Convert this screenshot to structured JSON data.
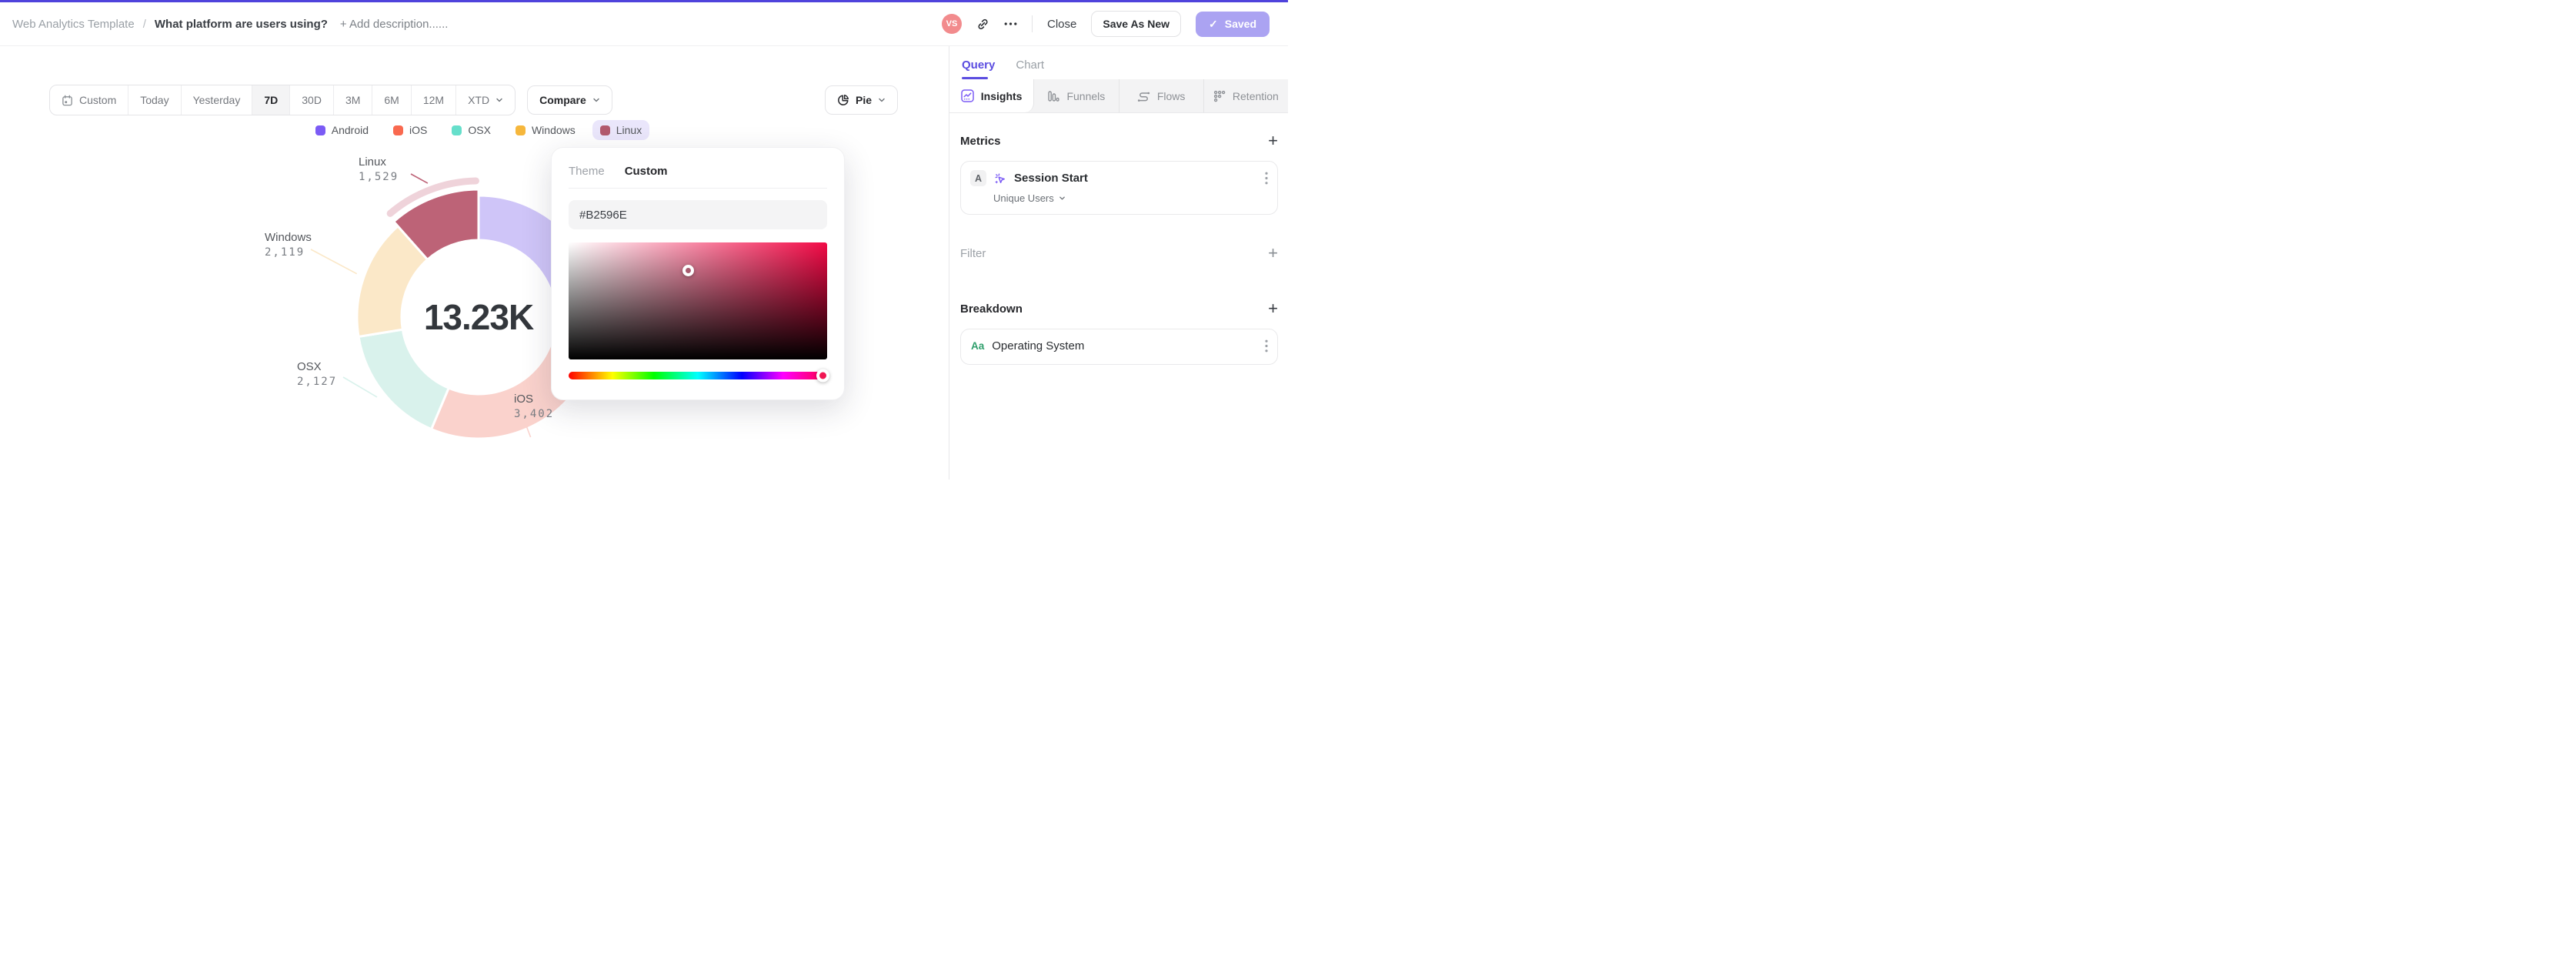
{
  "header": {
    "breadcrumb": "Web Analytics Template",
    "separator": "/",
    "title": "What platform are users using?",
    "add_description": "+ Add description......",
    "avatar_initials": "VS",
    "close_label": "Close",
    "save_as_new_label": "Save As New",
    "saved_label": "Saved",
    "saved_check": "✓",
    "accent_color": "#4F43DC",
    "saved_button_color": "#ABA3F2",
    "avatar_color": "#F28B8D"
  },
  "toolbar": {
    "ranges": [
      "Custom",
      "Today",
      "Yesterday",
      "7D",
      "30D",
      "3M",
      "6M",
      "12M",
      "XTD"
    ],
    "active_range": "7D",
    "dropdown_range": "XTD",
    "compare_label": "Compare",
    "chart_type_label": "Pie"
  },
  "chart_data": {
    "type": "pie",
    "donut": true,
    "title": "",
    "total_display": "13.23K",
    "total_value": 13230,
    "categories": [
      "Android",
      "iOS",
      "OSX",
      "Windows",
      "Linux"
    ],
    "values": [
      4053,
      3402,
      2127,
      2119,
      1529
    ],
    "series": [
      {
        "name": "Android",
        "value": 4053,
        "display_value": "",
        "label_visible": false,
        "legend_color": "#7B5BF5",
        "slice_color": "#CFC5F8"
      },
      {
        "name": "iOS",
        "value": 3402,
        "display_value": "3,402",
        "label_visible": true,
        "legend_color": "#F9694F",
        "slice_color": "#FAD2CC"
      },
      {
        "name": "OSX",
        "value": 2127,
        "display_value": "2,127",
        "label_visible": true,
        "legend_color": "#66DFCB",
        "slice_color": "#D9F2EC"
      },
      {
        "name": "Windows",
        "value": 2119,
        "display_value": "2,119",
        "label_visible": true,
        "legend_color": "#F6B73C",
        "slice_color": "#FBE8C8"
      },
      {
        "name": "Linux",
        "value": 1529,
        "display_value": "1,529",
        "label_visible": true,
        "legend_color": "#B2596E",
        "slice_color": "#BD6377"
      }
    ],
    "highlighted": "Linux",
    "highlight_ring_color": "#EFD3DA",
    "legend_position": "top",
    "legend_highlight_bg": "#EAE6FB"
  },
  "color_picker": {
    "tabs": [
      "Theme",
      "Custom"
    ],
    "active_tab": "Custom",
    "hex_value": "#B2596E",
    "sv_cursor_color": "#A75A6E",
    "hue_handle_color": "#F01652"
  },
  "panel": {
    "tabs": [
      "Query",
      "Chart"
    ],
    "active_tab": "Query",
    "subtabs": [
      "Insights",
      "Funnels",
      "Flows",
      "Retention"
    ],
    "active_subtab": "Insights",
    "metrics": {
      "heading": "Metrics",
      "add_label": "+",
      "items": [
        {
          "badge": "A",
          "label": "Session Start",
          "aggregation": "Unique Users"
        }
      ]
    },
    "filter": {
      "heading": "Filter",
      "add_label": "+"
    },
    "breakdown": {
      "heading": "Breakdown",
      "add_label": "+",
      "items": [
        {
          "badge": "Aa",
          "label": "Operating System"
        }
      ]
    }
  }
}
